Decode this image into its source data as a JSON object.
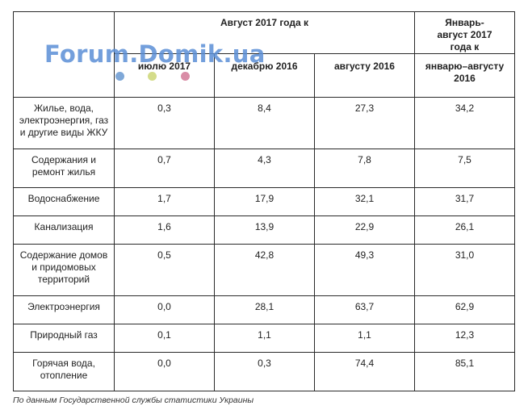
{
  "header": {
    "group_aug": "Август 2017 года к",
    "group_jan": "Январь-август 2017 года к",
    "col_jul": "июлю 2017",
    "col_dec": "декабрю 2016",
    "col_aug": "августу 2016",
    "col_janaug": "январю–августу 2016"
  },
  "rows": [
    {
      "label": "Жилье, вода, электроэнергия, газ и другие виды ЖКУ",
      "jul": "0,3",
      "dec": "8,4",
      "aug": "27,3",
      "janaug": "34,2"
    },
    {
      "label": "Содержания и ремонт жилья",
      "jul": "0,7",
      "dec": "4,3",
      "aug": "7,8",
      "janaug": "7,5"
    },
    {
      "label": "Водоснабжение",
      "jul": "1,7",
      "dec": "17,9",
      "aug": "32,1",
      "janaug": "31,7"
    },
    {
      "label": "Канализация",
      "jul": "1,6",
      "dec": "13,9",
      "aug": "22,9",
      "janaug": "26,1"
    },
    {
      "label": "Содержание домов и придомовых территорий",
      "jul": "0,5",
      "dec": "42,8",
      "aug": "49,3",
      "janaug": "31,0"
    },
    {
      "label": "Электроэнергия",
      "jul": "0,0",
      "dec": "28,1",
      "aug": "63,7",
      "janaug": "62,9"
    },
    {
      "label": "Природный газ",
      "jul": "0,1",
      "dec": "1,1",
      "aug": "1,1",
      "janaug": "12,3"
    },
    {
      "label": "Горячая вода, отопление",
      "jul": "0,0",
      "dec": "0,3",
      "aug": "74,4",
      "janaug": "85,1"
    }
  ],
  "watermark": {
    "text": "Forum.Domik.ua",
    "dot_colors": [
      "#7fa8d8",
      "#d4dc8a",
      "#d98ca6"
    ]
  },
  "footer": {
    "source": "По данным Государственной службы статистики Украины"
  },
  "colors": {
    "border": "#2a2a2a",
    "watermark": "#5b8fd6",
    "text": "#222222"
  }
}
